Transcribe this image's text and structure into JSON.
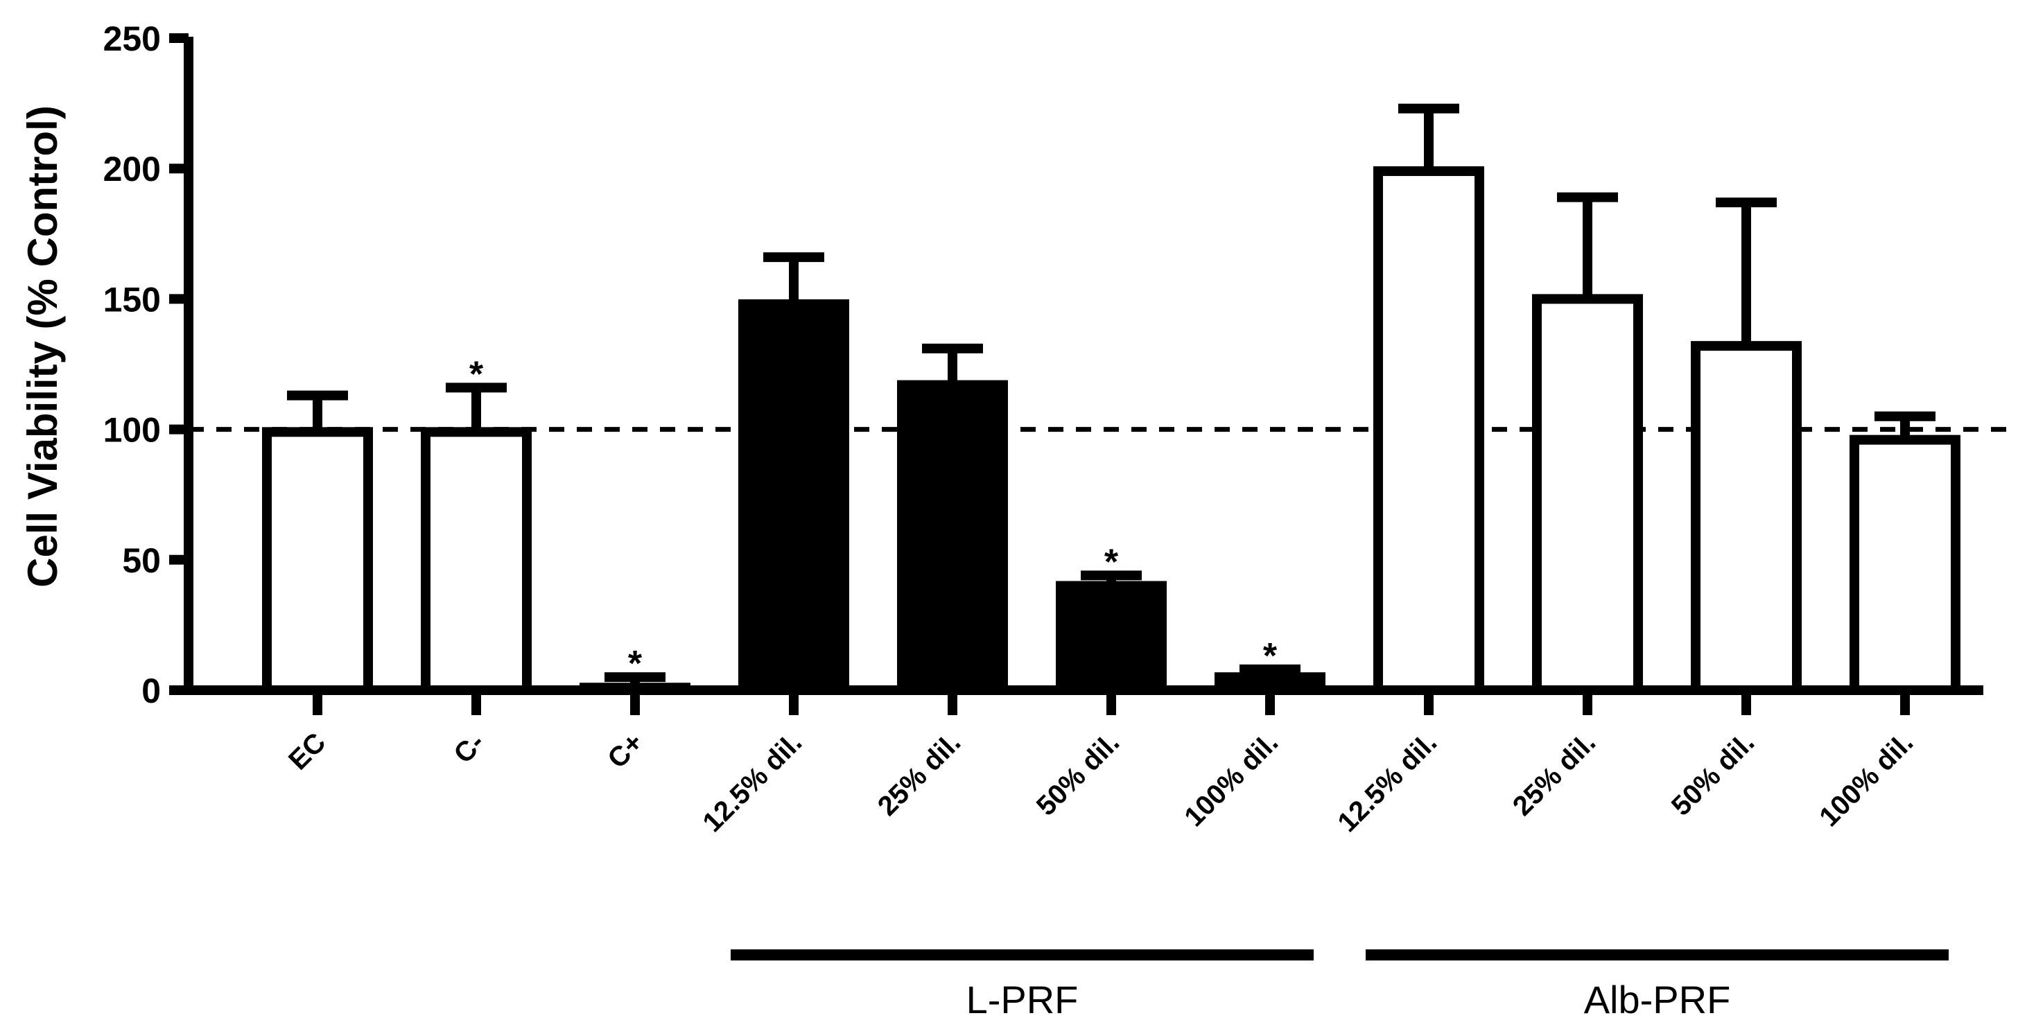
{
  "chart_data": {
    "type": "bar",
    "title": "",
    "ylabel": "Cell Viability (% Control)",
    "xlabel": "",
    "ylim": [
      0,
      250
    ],
    "yticks": [
      "0",
      "50",
      "100",
      "150",
      "200",
      "250"
    ],
    "reference_line": 100,
    "categories": [
      "EC",
      "C-",
      "C+",
      "12.5% dil.",
      "25% dil.",
      "50% dil.",
      "100% dil.",
      "12.5% dil.",
      "25% dil.",
      "50% dil.",
      "100% dil."
    ],
    "values": [
      99,
      99,
      1,
      148,
      117,
      40,
      5,
      199,
      150,
      132,
      96
    ],
    "errors": [
      14,
      17,
      4,
      18,
      14,
      4,
      3,
      24,
      39,
      55,
      9
    ],
    "fills": [
      "white",
      "white",
      "white",
      "black",
      "black",
      "black",
      "black",
      "white",
      "white",
      "white",
      "white"
    ],
    "significance": [
      "",
      "*",
      "*",
      "",
      "",
      "*",
      "*",
      "",
      "",
      "",
      ""
    ],
    "groups": [
      {
        "label": "L-PRF",
        "start": 3,
        "end": 6
      },
      {
        "label": "Alb-PRF",
        "start": 7,
        "end": 10
      }
    ]
  }
}
